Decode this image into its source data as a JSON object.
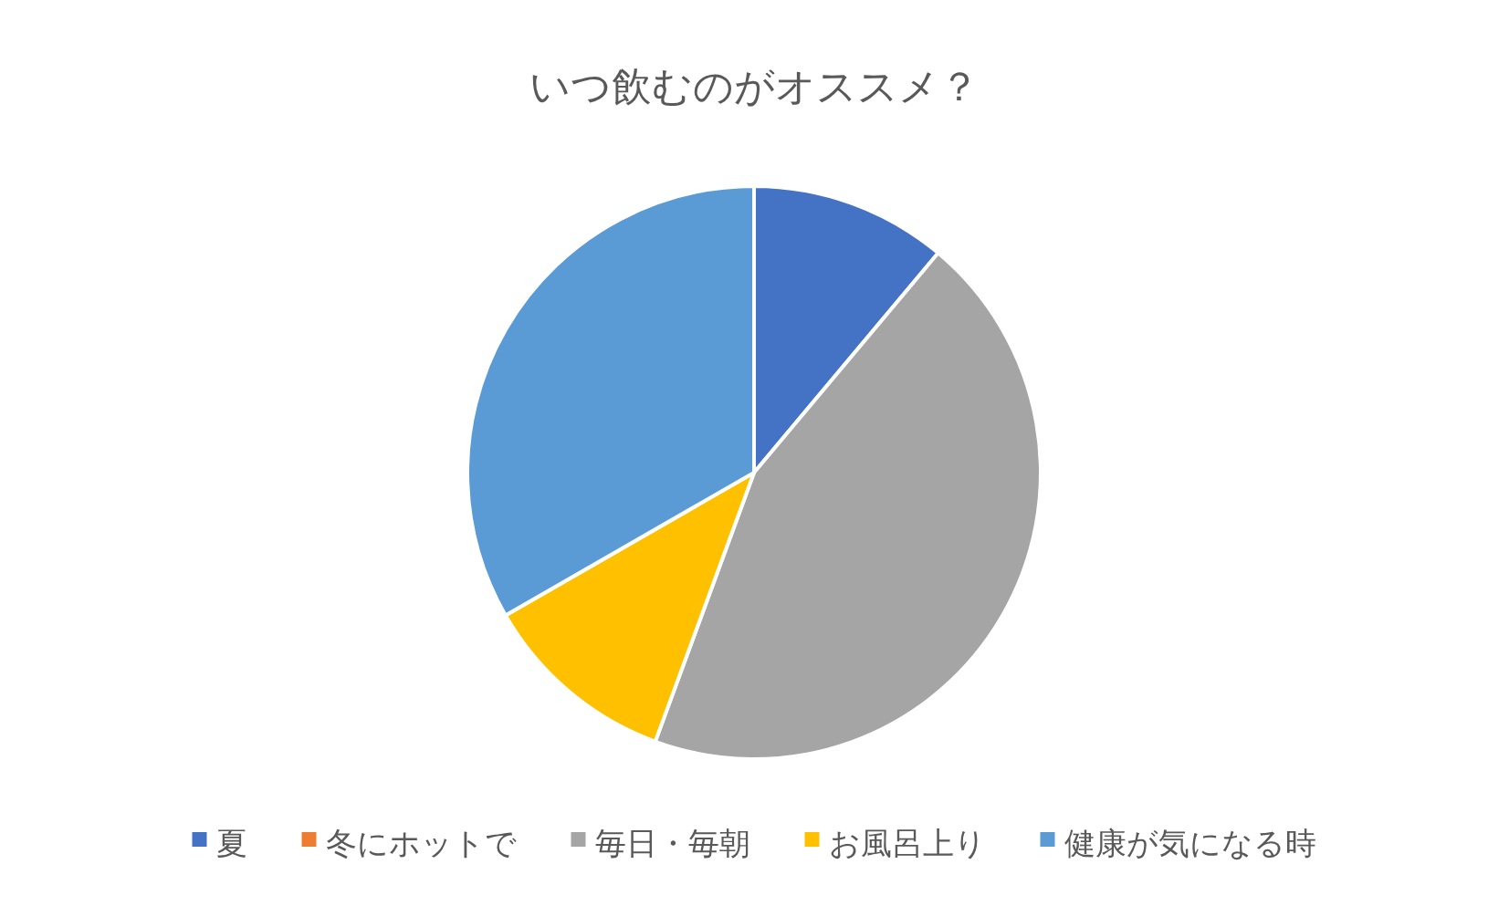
{
  "chart_data": {
    "type": "pie",
    "title": "いつ飲むのがオススメ？",
    "categories": [
      "夏",
      "冬にホットで",
      "毎日・毎朝",
      "お風呂上り",
      "健康が気になる時"
    ],
    "values": [
      11.1,
      0,
      44.5,
      11.1,
      33.3
    ],
    "colors": [
      "#4472c4",
      "#ed7d31",
      "#a5a5a5",
      "#ffc000",
      "#5b9bd5"
    ],
    "legend": "bottom"
  }
}
